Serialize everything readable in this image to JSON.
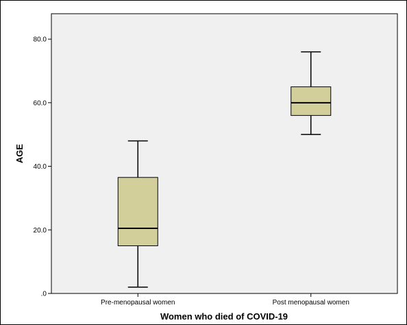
{
  "chart_data": {
    "type": "box",
    "title": "",
    "xlabel": "Women who died of COVID-19",
    "ylabel": "AGE",
    "ylim": [
      0,
      88
    ],
    "yticks": [
      0,
      20,
      40,
      60,
      80
    ],
    "ytick_labels": [
      ".0",
      "20.0",
      "40.0",
      "60.0",
      "80.0"
    ],
    "categories": [
      "Pre-menopausal women",
      "Post menopausal women"
    ],
    "boxes": [
      {
        "category": "Pre-menopausal women",
        "min": 2,
        "q1": 15,
        "median": 20.5,
        "q3": 36.5,
        "max": 48
      },
      {
        "category": "Post menopausal women",
        "min": 50,
        "q1": 56,
        "median": 60,
        "q3": 65,
        "max": 76
      }
    ],
    "grid": false,
    "legend": "none",
    "colors": {
      "plot_background": "#f0f0f0",
      "box_fill": "#d2cf9a",
      "box_stroke": "#000000"
    }
  }
}
